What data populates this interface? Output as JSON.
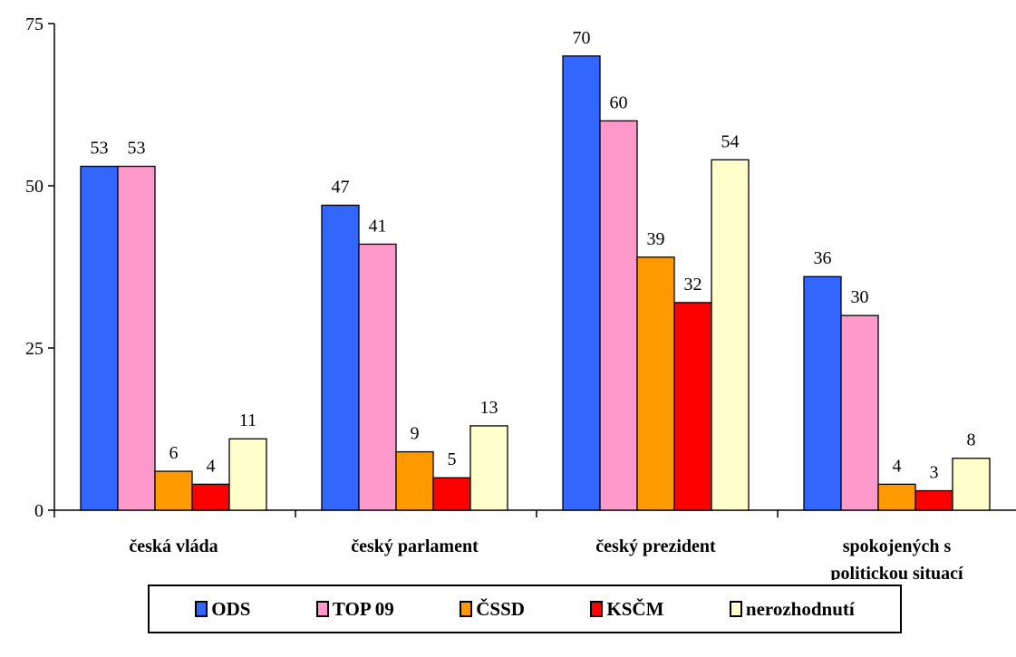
{
  "chart_data": {
    "type": "bar",
    "categories": [
      [
        "česká vláda"
      ],
      [
        "český parlament"
      ],
      [
        "český prezident"
      ],
      [
        "spokojených s",
        "politickou situací"
      ]
    ],
    "series": [
      {
        "name": "ODS",
        "color": "#3366FF",
        "values": [
          53,
          47,
          70,
          36
        ]
      },
      {
        "name": "TOP 09",
        "color": "#FF99CC",
        "values": [
          53,
          41,
          60,
          30
        ]
      },
      {
        "name": "ČSSD",
        "color": "#FF9900",
        "values": [
          6,
          9,
          39,
          4
        ]
      },
      {
        "name": "KSČM",
        "color": "#FF0000",
        "values": [
          4,
          5,
          32,
          3
        ]
      },
      {
        "name": "nerozhodnutí",
        "color": "#FFFFCC",
        "values": [
          11,
          13,
          54,
          8
        ]
      }
    ],
    "ylim": [
      0,
      75
    ],
    "yticks": [
      0,
      25,
      50,
      75
    ],
    "legend_position": "bottom",
    "grid": false
  }
}
